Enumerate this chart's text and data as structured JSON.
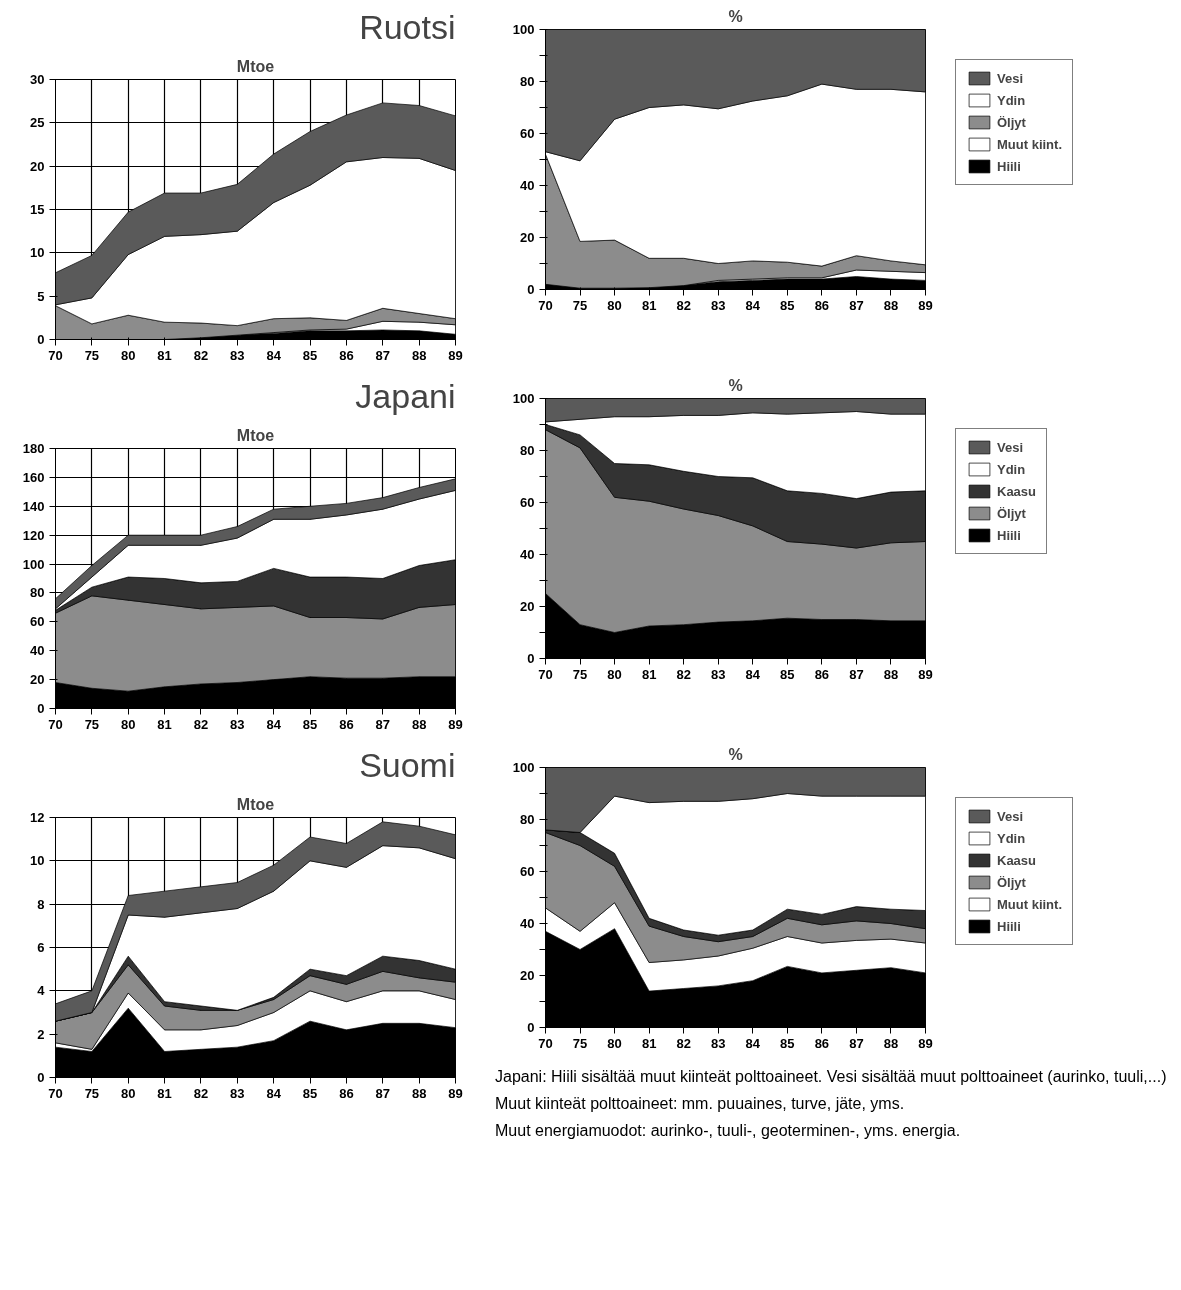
{
  "chart_data": [
    {
      "type": "area",
      "stacked": true,
      "title": "Ruotsi",
      "ylabel": "Mtoe",
      "categories": [
        "70",
        "75",
        "80",
        "81",
        "82",
        "83",
        "84",
        "85",
        "86",
        "87",
        "88",
        "89"
      ],
      "ylim": [
        0,
        30
      ],
      "yticks": [
        0,
        5,
        10,
        15,
        20,
        25,
        30
      ],
      "grid": true,
      "legend": false,
      "series": [
        {
          "color": "#000000",
          "values": [
            0,
            0,
            0,
            0,
            0.2,
            0.5,
            0.7,
            1.0,
            1.0,
            1.1,
            1.0,
            0.6
          ]
        },
        {
          "color": "#ffffff",
          "values": [
            0,
            0,
            0,
            0,
            0,
            0,
            0.1,
            0.1,
            0.2,
            1.0,
            1.0,
            1.1
          ]
        },
        {
          "color": "#8c8c8c",
          "values": [
            3.9,
            1.8,
            2.8,
            2.0,
            1.7,
            1.1,
            1.6,
            1.4,
            1.0,
            1.5,
            1.0,
            0.7
          ]
        },
        {
          "color": "#ffffff",
          "values": [
            0.1,
            3.0,
            7.0,
            9.9,
            10.2,
            10.9,
            13.4,
            15.3,
            18.3,
            17.4,
            17.9,
            17.1
          ]
        },
        {
          "color": "#5a5a5a",
          "values": [
            3.7,
            4.9,
            4.9,
            5.0,
            4.8,
            5.4,
            5.6,
            6.2,
            5.4,
            6.3,
            6.1,
            6.3
          ]
        }
      ]
    },
    {
      "type": "area",
      "stacked": true,
      "ylabel": "%",
      "categories": [
        "70",
        "75",
        "80",
        "81",
        "82",
        "83",
        "84",
        "85",
        "86",
        "87",
        "88",
        "89"
      ],
      "ylim": [
        0,
        100
      ],
      "yticks": [
        0,
        {
          "value": 10,
          "label": null
        },
        20,
        {
          "value": 30,
          "label": null
        },
        40,
        {
          "value": 50,
          "label": null
        },
        60,
        {
          "value": 70,
          "label": null
        },
        80,
        {
          "value": 90,
          "label": null
        },
        100
      ],
      "legend": "right",
      "series": [
        {
          "name": "Hiili",
          "color": "#000000",
          "values": [
            2,
            0.5,
            0.5,
            0.7,
            1.5,
            3,
            3.5,
            4,
            4,
            5,
            4,
            3.5
          ]
        },
        {
          "name": "Muut kiint.",
          "color": "#ffffff",
          "values": [
            0,
            0,
            0,
            0,
            0,
            0.5,
            0.5,
            0.5,
            0.5,
            2.5,
            3,
            3
          ]
        },
        {
          "name": "Öljyt",
          "color": "#8c8c8c",
          "values": [
            50,
            18,
            18.5,
            11.3,
            10.5,
            6.5,
            7,
            6,
            4.5,
            5.5,
            4,
            3
          ]
        },
        {
          "name": "Ydin",
          "color": "#ffffff",
          "values": [
            1,
            31,
            46.5,
            58,
            59,
            59.5,
            61.5,
            64,
            70,
            64,
            66,
            66.5
          ]
        },
        {
          "name": "Vesi",
          "color": "#5a5a5a",
          "values": [
            47,
            50.5,
            34.5,
            30,
            29,
            30.5,
            27.5,
            25.5,
            21,
            23,
            23,
            24
          ]
        }
      ]
    },
    {
      "type": "area",
      "stacked": true,
      "title": "Japani",
      "ylabel": "Mtoe",
      "categories": [
        "70",
        "75",
        "80",
        "81",
        "82",
        "83",
        "84",
        "85",
        "86",
        "87",
        "88",
        "89"
      ],
      "ylim": [
        0,
        180
      ],
      "yticks": [
        0,
        20,
        40,
        60,
        80,
        100,
        120,
        140,
        160,
        180
      ],
      "grid": true,
      "legend": false,
      "series": [
        {
          "color": "#000000",
          "values": [
            18,
            14,
            12,
            15,
            17,
            18,
            20,
            22,
            21,
            21,
            22,
            22
          ]
        },
        {
          "color": "#8c8c8c",
          "values": [
            48,
            64,
            63,
            57,
            52,
            52,
            51,
            41,
            42,
            41,
            48,
            50
          ]
        },
        {
          "color": "#333333",
          "values": [
            2,
            6,
            16,
            18,
            18,
            18,
            26,
            28,
            28,
            28,
            29,
            31
          ]
        },
        {
          "color": "#ffffff",
          "values": [
            1,
            7,
            22,
            23,
            26,
            30,
            34,
            40,
            43,
            48,
            46,
            48
          ]
        },
        {
          "color": "#5a5a5a",
          "values": [
            7,
            8,
            7,
            7,
            7,
            8,
            7,
            9,
            8,
            8,
            8,
            8
          ]
        }
      ]
    },
    {
      "type": "area",
      "stacked": true,
      "ylabel": "%",
      "categories": [
        "70",
        "75",
        "80",
        "81",
        "82",
        "83",
        "84",
        "85",
        "86",
        "87",
        "88",
        "89"
      ],
      "ylim": [
        0,
        100
      ],
      "yticks": [
        0,
        {
          "value": 10,
          "label": null
        },
        20,
        {
          "value": 30,
          "label": null
        },
        40,
        {
          "value": 50,
          "label": null
        },
        60,
        {
          "value": 70,
          "label": null
        },
        80,
        {
          "value": 90,
          "label": null
        },
        100
      ],
      "legend": "right",
      "series": [
        {
          "name": "Hiili",
          "color": "#000000",
          "values": [
            25,
            13,
            10,
            12.5,
            13,
            14,
            14.5,
            15.5,
            15,
            15,
            14.5,
            14.5
          ]
        },
        {
          "name": "Öljyt",
          "color": "#8c8c8c",
          "values": [
            63,
            68,
            52,
            48,
            44.5,
            41,
            36.5,
            29.5,
            29,
            27.5,
            30,
            30.5
          ]
        },
        {
          "name": "Kaasu",
          "color": "#333333",
          "values": [
            2,
            5,
            13,
            14,
            14.5,
            15,
            18.5,
            19.5,
            19.5,
            19,
            19.5,
            19.5
          ]
        },
        {
          "name": "Ydin",
          "color": "#ffffff",
          "values": [
            1,
            6,
            18,
            18.5,
            21.5,
            23.5,
            25,
            29.5,
            31,
            33.5,
            30,
            29.5
          ]
        },
        {
          "name": "Vesi",
          "color": "#5a5a5a",
          "values": [
            9,
            8,
            7,
            7,
            6.5,
            6.5,
            5.5,
            6,
            5.5,
            5,
            6,
            6
          ]
        }
      ]
    },
    {
      "type": "area",
      "stacked": true,
      "title": "Suomi",
      "ylabel": "Mtoe",
      "categories": [
        "70",
        "75",
        "80",
        "81",
        "82",
        "83",
        "84",
        "85",
        "86",
        "87",
        "88",
        "89"
      ],
      "ylim": [
        0,
        12
      ],
      "yticks": [
        0,
        2,
        4,
        6,
        8,
        10,
        12
      ],
      "grid": true,
      "legend": false,
      "series": [
        {
          "color": "#000000",
          "values": [
            1.4,
            1.2,
            3.2,
            1.2,
            1.3,
            1.4,
            1.7,
            2.6,
            2.2,
            2.5,
            2.5,
            2.3
          ]
        },
        {
          "color": "#ffffff",
          "values": [
            0.2,
            0.1,
            0.7,
            1.0,
            0.9,
            1.0,
            1.3,
            1.4,
            1.3,
            1.5,
            1.5,
            1.3
          ]
        },
        {
          "color": "#8c8c8c",
          "values": [
            1.0,
            1.7,
            1.3,
            1.1,
            0.9,
            0.7,
            0.6,
            0.7,
            0.8,
            0.9,
            0.6,
            0.8
          ]
        },
        {
          "color": "#333333",
          "values": [
            0,
            0,
            0.4,
            0.2,
            0.2,
            0,
            0.1,
            0.3,
            0.4,
            0.7,
            0.8,
            0.6
          ]
        },
        {
          "color": "#ffffff",
          "values": [
            0,
            0,
            1.9,
            3.9,
            4.3,
            4.7,
            4.9,
            5.0,
            5.0,
            5.1,
            5.2,
            5.1
          ]
        },
        {
          "color": "#5a5a5a",
          "values": [
            0.8,
            1.0,
            0.9,
            1.2,
            1.2,
            1.2,
            1.2,
            1.1,
            1.1,
            1.1,
            1.0,
            1.1
          ]
        }
      ]
    },
    {
      "type": "area",
      "stacked": true,
      "ylabel": "%",
      "categories": [
        "70",
        "75",
        "80",
        "81",
        "82",
        "83",
        "84",
        "85",
        "86",
        "87",
        "88",
        "89"
      ],
      "ylim": [
        0,
        100
      ],
      "yticks": [
        0,
        {
          "value": 10,
          "label": null
        },
        20,
        {
          "value": 30,
          "label": null
        },
        40,
        {
          "value": 50,
          "label": null
        },
        60,
        {
          "value": 70,
          "label": null
        },
        80,
        {
          "value": 90,
          "label": null
        },
        100
      ],
      "legend": "right",
      "annotations": [
        "Japani: Hiili sisältää muut kiinteät polttoaineet. Vesi sisältää muut polttoaineet (aurinko, tuuli,...)",
        "Muut kiinteät polttoaineet: mm. puuaines, turve, jäte, yms.",
        "Muut energiamuodot: aurinko-, tuuli-, geoterminen-, yms. energia."
      ],
      "series": [
        {
          "name": "Hiili",
          "color": "#000000",
          "values": [
            37,
            30,
            38,
            14,
            15,
            16,
            18,
            23.5,
            21,
            22,
            23,
            21
          ]
        },
        {
          "name": "Muut kiint.",
          "color": "#ffffff",
          "values": [
            9,
            7,
            10,
            11,
            11,
            11.5,
            12.5,
            11.5,
            11.5,
            11.5,
            11,
            11.5
          ]
        },
        {
          "name": "Öljyt",
          "color": "#8c8c8c",
          "values": [
            29,
            33,
            14,
            14,
            9,
            5.5,
            4.5,
            7,
            7,
            7.5,
            6,
            5.5
          ]
        },
        {
          "name": "Kaasu",
          "color": "#333333",
          "values": [
            1,
            5,
            5,
            3,
            2.5,
            2.5,
            2.5,
            3.5,
            4,
            5.5,
            5.5,
            7
          ]
        },
        {
          "name": "Ydin",
          "color": "#ffffff",
          "values": [
            0,
            0,
            22,
            44.5,
            49.5,
            51.5,
            50.5,
            44.5,
            45.5,
            42.5,
            43.5,
            44
          ]
        },
        {
          "name": "Vesi",
          "color": "#5a5a5a",
          "values": [
            24,
            25,
            11,
            13.5,
            13,
            13,
            12,
            10,
            11,
            11,
            11,
            11
          ]
        }
      ]
    }
  ]
}
